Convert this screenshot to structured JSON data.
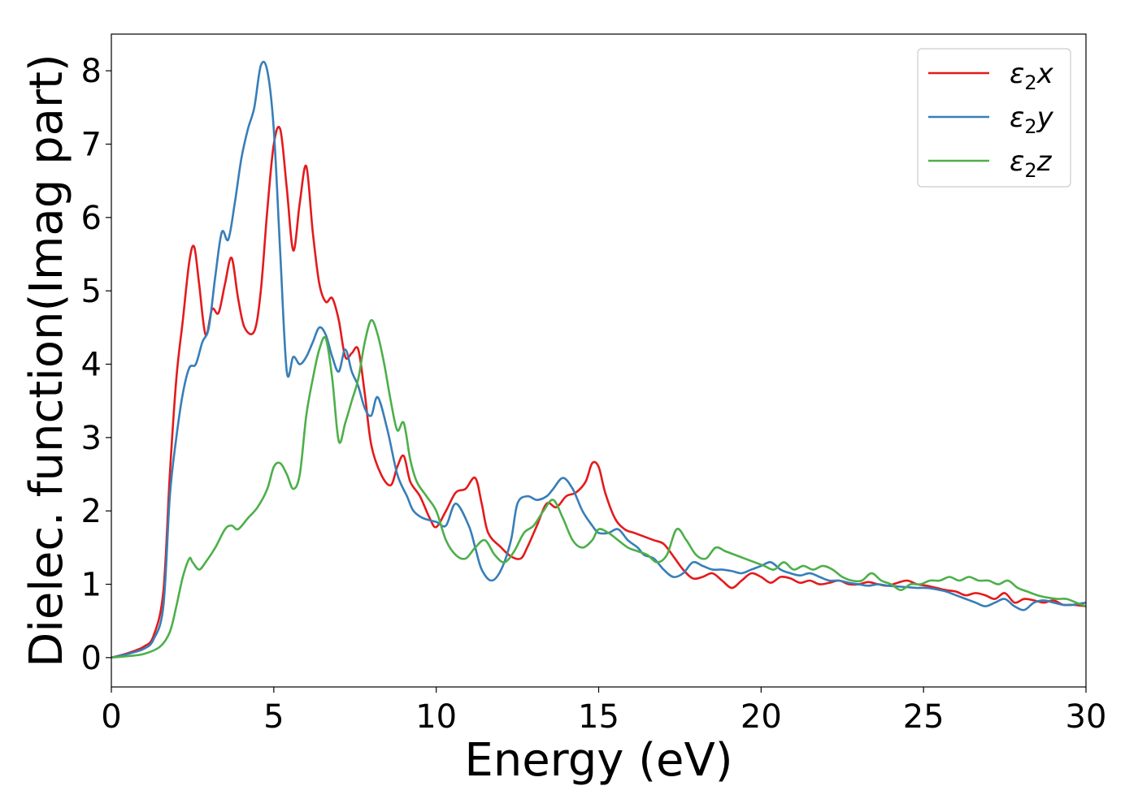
{
  "chart_data": {
    "type": "line",
    "title": "",
    "xlabel": "Energy (eV)",
    "ylabel": "Dielec. function(Imag part)",
    "xlim": [
      0,
      30
    ],
    "ylim": [
      -0.4,
      8.5
    ],
    "xticks": [
      0,
      5,
      10,
      15,
      20,
      25,
      30
    ],
    "yticks": [
      0,
      1,
      2,
      3,
      4,
      5,
      6,
      7,
      8
    ],
    "grid": false,
    "legend_position": "top-right",
    "colors": {
      "x": "#e41a1c",
      "y": "#377eb8",
      "z": "#4daf4a"
    },
    "series": [
      {
        "name": "ε₂x",
        "label_main": "ε",
        "label_sub": "2",
        "label_var": "x",
        "color": "#e41a1c",
        "x": [
          0,
          0.5,
          1,
          1.3,
          1.6,
          1.8,
          2.0,
          2.2,
          2.4,
          2.55,
          2.7,
          2.9,
          3.1,
          3.3,
          3.5,
          3.7,
          3.9,
          4.1,
          4.4,
          4.6,
          4.8,
          5.0,
          5.2,
          5.4,
          5.6,
          5.8,
          6.0,
          6.2,
          6.4,
          6.6,
          6.8,
          7.0,
          7.2,
          7.4,
          7.6,
          7.8,
          8.0,
          8.3,
          8.6,
          8.8,
          9.0,
          9.2,
          9.5,
          9.8,
          10.0,
          10.3,
          10.6,
          10.9,
          11.2,
          11.4,
          11.6,
          12.0,
          12.3,
          12.6,
          12.8,
          13.1,
          13.4,
          13.7,
          14.0,
          14.3,
          14.6,
          14.8,
          15.0,
          15.2,
          15.5,
          15.8,
          16.1,
          16.4,
          16.7,
          17.0,
          17.3,
          17.6,
          17.9,
          18.2,
          18.5,
          18.8,
          19.1,
          19.4,
          19.7,
          20.0,
          20.3,
          20.6,
          20.9,
          21.2,
          21.5,
          21.8,
          22.1,
          22.4,
          22.7,
          23.0,
          23.3,
          23.6,
          23.9,
          24.2,
          24.5,
          24.8,
          25.1,
          25.4,
          25.7,
          26.0,
          26.3,
          26.6,
          26.9,
          27.2,
          27.5,
          27.8,
          28.1,
          28.4,
          28.7,
          29.0,
          29.3,
          29.6,
          30.0
        ],
        "values": [
          0.0,
          0.06,
          0.15,
          0.3,
          0.9,
          2.5,
          3.8,
          4.6,
          5.4,
          5.6,
          5.1,
          4.4,
          4.75,
          4.7,
          5.1,
          5.45,
          4.9,
          4.5,
          4.45,
          5.0,
          6.1,
          7.0,
          7.2,
          6.4,
          5.55,
          6.2,
          6.7,
          5.8,
          5.1,
          4.85,
          4.9,
          4.6,
          4.1,
          4.15,
          4.2,
          3.6,
          2.9,
          2.5,
          2.35,
          2.6,
          2.75,
          2.4,
          2.2,
          1.9,
          1.78,
          2.0,
          2.25,
          2.3,
          2.45,
          2.1,
          1.7,
          1.5,
          1.38,
          1.35,
          1.5,
          1.8,
          2.1,
          2.05,
          2.2,
          2.25,
          2.4,
          2.65,
          2.6,
          2.25,
          1.9,
          1.75,
          1.7,
          1.65,
          1.6,
          1.55,
          1.38,
          1.2,
          1.08,
          1.1,
          1.15,
          1.05,
          0.95,
          1.05,
          1.15,
          1.1,
          1.02,
          1.1,
          1.08,
          1.02,
          1.05,
          1.0,
          1.02,
          1.05,
          1.0,
          1.0,
          1.03,
          1.0,
          0.98,
          1.02,
          1.05,
          1.0,
          0.98,
          0.95,
          0.92,
          0.9,
          0.85,
          0.88,
          0.85,
          0.8,
          0.88,
          0.75,
          0.8,
          0.78,
          0.75,
          0.78,
          0.72,
          0.72,
          0.7
        ]
      },
      {
        "name": "ε₂y",
        "label_main": "ε",
        "label_sub": "2",
        "label_var": "y",
        "color": "#377eb8",
        "x": [
          0,
          0.5,
          1,
          1.3,
          1.6,
          1.8,
          2.0,
          2.2,
          2.4,
          2.6,
          2.8,
          3.0,
          3.2,
          3.4,
          3.6,
          3.8,
          4.0,
          4.2,
          4.4,
          4.6,
          4.8,
          5.0,
          5.2,
          5.4,
          5.6,
          5.8,
          6.0,
          6.2,
          6.4,
          6.6,
          6.8,
          7.0,
          7.2,
          7.4,
          7.6,
          7.8,
          8.0,
          8.2,
          8.5,
          8.8,
          9.1,
          9.3,
          9.6,
          10.0,
          10.3,
          10.6,
          11.0,
          11.2,
          11.4,
          11.7,
          12.0,
          12.3,
          12.5,
          12.8,
          13.1,
          13.4,
          13.6,
          13.9,
          14.2,
          14.5,
          14.8,
          15.0,
          15.3,
          15.6,
          15.9,
          16.2,
          16.4,
          16.7,
          17.0,
          17.3,
          17.6,
          17.9,
          18.2,
          18.5,
          18.8,
          19.1,
          19.4,
          19.7,
          20.0,
          20.3,
          20.6,
          20.9,
          21.2,
          21.5,
          21.8,
          22.1,
          22.4,
          22.7,
          23.0,
          23.3,
          23.6,
          23.9,
          24.2,
          24.5,
          24.8,
          25.1,
          25.4,
          25.7,
          26.0,
          26.3,
          26.6,
          26.9,
          27.2,
          27.5,
          27.8,
          28.1,
          28.4,
          28.7,
          29.0,
          29.3,
          29.6,
          30.0
        ],
        "values": [
          0.0,
          0.05,
          0.12,
          0.25,
          0.7,
          2.2,
          3.0,
          3.6,
          3.95,
          4.0,
          4.3,
          4.5,
          5.2,
          5.8,
          5.7,
          6.2,
          6.8,
          7.2,
          7.5,
          8.07,
          8.0,
          7.2,
          5.5,
          3.9,
          4.1,
          4.0,
          4.1,
          4.3,
          4.5,
          4.4,
          4.1,
          3.9,
          4.2,
          3.9,
          3.7,
          3.4,
          3.3,
          3.55,
          3.1,
          2.5,
          2.2,
          2.0,
          1.9,
          1.85,
          1.8,
          2.1,
          1.8,
          1.5,
          1.2,
          1.05,
          1.2,
          1.6,
          2.1,
          2.2,
          2.15,
          2.2,
          2.3,
          2.45,
          2.3,
          2.0,
          1.8,
          1.7,
          1.7,
          1.75,
          1.6,
          1.5,
          1.4,
          1.35,
          1.2,
          1.1,
          1.15,
          1.3,
          1.25,
          1.2,
          1.2,
          1.18,
          1.15,
          1.2,
          1.25,
          1.3,
          1.2,
          1.15,
          1.12,
          1.15,
          1.1,
          1.05,
          1.05,
          1.02,
          1.0,
          0.98,
          1.0,
          0.98,
          0.97,
          0.96,
          0.95,
          0.95,
          0.93,
          0.9,
          0.85,
          0.8,
          0.75,
          0.7,
          0.75,
          0.8,
          0.7,
          0.65,
          0.75,
          0.78,
          0.75,
          0.72,
          0.72,
          0.75
        ]
      },
      {
        "name": "ε₂z",
        "label_main": "ε",
        "label_sub": "2",
        "label_var": "z",
        "color": "#4daf4a",
        "x": [
          0,
          0.5,
          1,
          1.5,
          1.8,
          2.0,
          2.2,
          2.4,
          2.5,
          2.7,
          2.9,
          3.2,
          3.5,
          3.7,
          3.9,
          4.2,
          4.5,
          4.8,
          5.0,
          5.2,
          5.4,
          5.6,
          5.8,
          6.0,
          6.2,
          6.4,
          6.6,
          6.8,
          7.0,
          7.2,
          7.4,
          7.6,
          7.8,
          8.0,
          8.2,
          8.4,
          8.6,
          8.8,
          9.0,
          9.2,
          9.4,
          9.7,
          10.0,
          10.3,
          10.6,
          10.9,
          11.2,
          11.5,
          11.8,
          12.1,
          12.4,
          12.7,
          13.0,
          13.3,
          13.6,
          13.9,
          14.2,
          14.5,
          14.8,
          15.0,
          15.3,
          15.6,
          15.9,
          16.2,
          16.5,
          16.8,
          17.1,
          17.4,
          17.7,
          18.0,
          18.3,
          18.6,
          18.9,
          19.2,
          19.5,
          19.8,
          20.1,
          20.4,
          20.7,
          21.0,
          21.3,
          21.6,
          21.9,
          22.2,
          22.5,
          22.8,
          23.1,
          23.4,
          23.7,
          24.0,
          24.3,
          24.6,
          24.9,
          25.2,
          25.5,
          25.8,
          26.1,
          26.4,
          26.7,
          27.0,
          27.3,
          27.6,
          27.9,
          28.2,
          28.5,
          28.8,
          29.1,
          29.4,
          29.7,
          30.0
        ],
        "values": [
          0.0,
          0.02,
          0.05,
          0.15,
          0.35,
          0.7,
          1.1,
          1.35,
          1.3,
          1.2,
          1.3,
          1.5,
          1.75,
          1.8,
          1.75,
          1.9,
          2.05,
          2.3,
          2.6,
          2.65,
          2.5,
          2.3,
          2.5,
          3.3,
          3.8,
          4.2,
          4.35,
          3.8,
          2.95,
          3.2,
          3.5,
          3.8,
          4.3,
          4.6,
          4.4,
          4.0,
          3.5,
          3.1,
          3.2,
          2.7,
          2.4,
          2.2,
          2.0,
          1.6,
          1.4,
          1.35,
          1.5,
          1.6,
          1.4,
          1.3,
          1.45,
          1.7,
          1.8,
          2.0,
          2.15,
          1.9,
          1.6,
          1.5,
          1.6,
          1.75,
          1.7,
          1.6,
          1.5,
          1.45,
          1.4,
          1.3,
          1.4,
          1.75,
          1.6,
          1.4,
          1.35,
          1.5,
          1.45,
          1.4,
          1.35,
          1.3,
          1.25,
          1.2,
          1.3,
          1.2,
          1.25,
          1.2,
          1.25,
          1.2,
          1.1,
          1.05,
          1.05,
          1.15,
          1.05,
          1.0,
          0.92,
          1.0,
          1.0,
          1.05,
          1.05,
          1.1,
          1.05,
          1.1,
          1.05,
          1.05,
          1.0,
          1.05,
          0.95,
          0.9,
          0.85,
          0.82,
          0.8,
          0.8,
          0.75,
          0.7
        ]
      }
    ]
  }
}
